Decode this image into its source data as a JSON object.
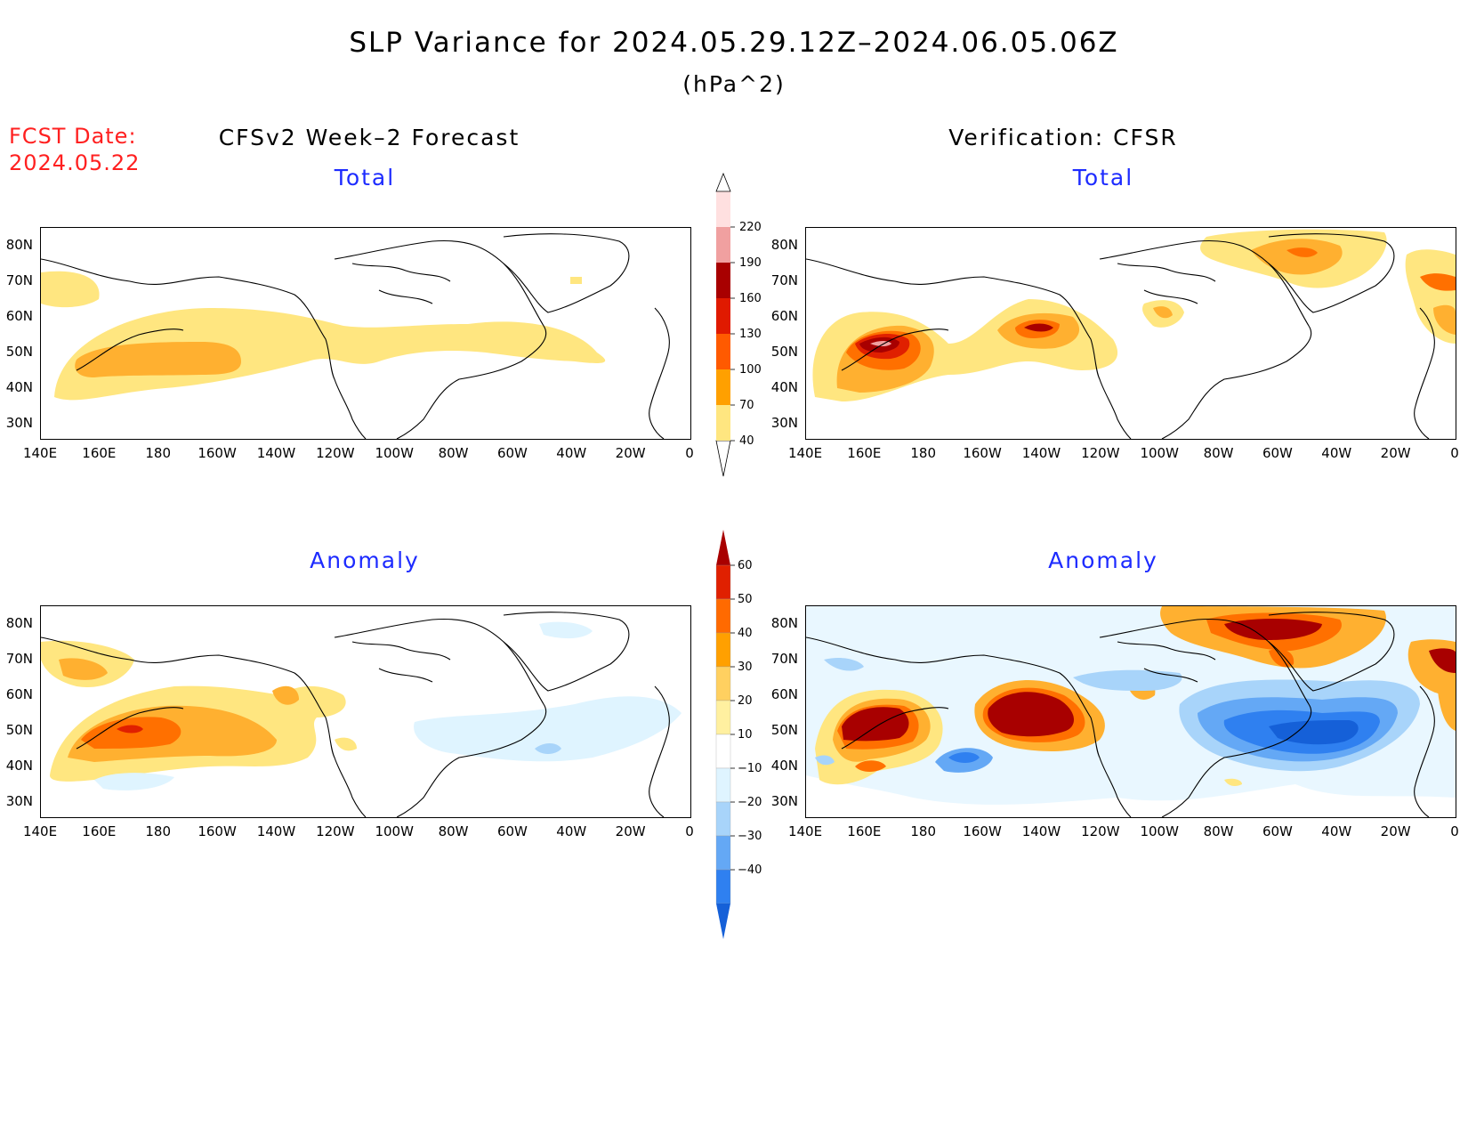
{
  "title": "SLP Variance for 2024.05.29.12Z–2024.06.05.06Z",
  "units": "(hPa^2)",
  "fcst_date": {
    "label": "FCST Date:",
    "value": "2024.05.22"
  },
  "columns": {
    "left_title": "CFSv2 Week–2 Forecast",
    "right_title": "Verification: CFSR"
  },
  "panels": {
    "top_left_title": "Total",
    "top_right_title": "Total",
    "bottom_left_title": "Anomaly",
    "bottom_right_title": "Anomaly"
  },
  "axes": {
    "lat_labels": [
      "80N",
      "70N",
      "60N",
      "50N",
      "40N",
      "30N"
    ],
    "lon_labels": [
      "140E",
      "160E",
      "180",
      "160W",
      "140W",
      "120W",
      "100W",
      "80W",
      "60W",
      "40W",
      "20W",
      "0"
    ]
  },
  "colorbars": {
    "total": {
      "levels": [
        "40",
        "70",
        "100",
        "130",
        "160",
        "190",
        "220"
      ],
      "colors": [
        "#ffe680",
        "#ffa000",
        "#ff5a00",
        "#e01a00",
        "#a80000",
        "#f0a0a0",
        "#ffe0e0"
      ]
    },
    "anomaly": {
      "levels": [
        "−40",
        "−30",
        "−20",
        "−10",
        "10",
        "20",
        "30",
        "40",
        "50",
        "60"
      ],
      "colors": [
        "#1560d8",
        "#2f80f0",
        "#64a8f5",
        "#a8d4fa",
        "#dff4ff",
        "#ffffff",
        "#fff0a0",
        "#ffd060",
        "#ffa000",
        "#ff6a00",
        "#e02000",
        "#a80000"
      ]
    }
  },
  "map_colors": {
    "coast": "#000000",
    "lev1": "#ffe680",
    "lev2": "#ffb030",
    "lev3": "#ff7000",
    "lev4": "#e02000",
    "lev5": "#a80000",
    "lev6": "#f0a0a0",
    "neg1": "#dff4ff",
    "neg2": "#a8d4fa",
    "neg3": "#64a8f5",
    "neg4": "#2f80f0"
  }
}
